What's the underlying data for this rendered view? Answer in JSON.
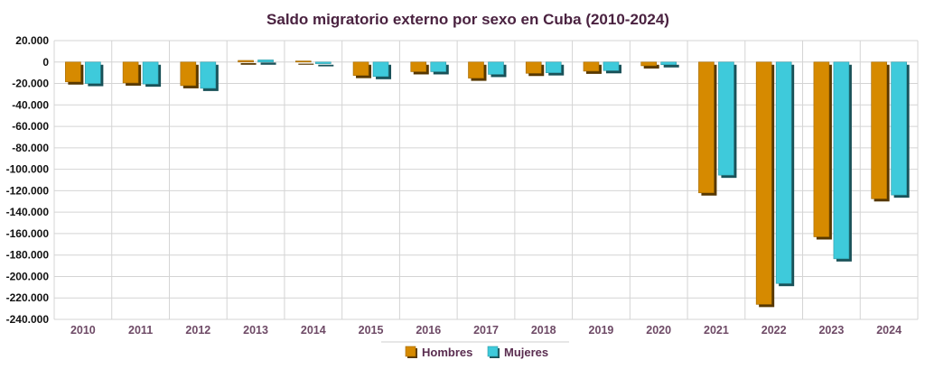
{
  "chart_data": {
    "type": "bar",
    "title": "Saldo migratorio externo por sexo en Cuba (2010-2024)",
    "xlabel": "",
    "ylabel": "",
    "categories": [
      "2010",
      "2011",
      "2012",
      "2013",
      "2014",
      "2015",
      "2016",
      "2017",
      "2018",
      "2019",
      "2020",
      "2021",
      "2022",
      "2023",
      "2024"
    ],
    "series": [
      {
        "name": "Hombres",
        "color": "#d68a00",
        "values": [
          -18500,
          -19500,
          -22000,
          1500,
          1000,
          -12500,
          -9000,
          -15000,
          -10500,
          -8500,
          -3500,
          -122000,
          -226000,
          -163000,
          -127500
        ]
      },
      {
        "name": "Mujeres",
        "color": "#3ecadb",
        "values": [
          -20000,
          -20500,
          -24500,
          2000,
          -1500,
          -13500,
          -9000,
          -11500,
          -10000,
          -8000,
          -2500,
          -105500,
          -206500,
          -183500,
          -124000
        ]
      }
    ],
    "ylim": [
      -240000,
      20000
    ],
    "yticks": [
      20000,
      0,
      -20000,
      -40000,
      -60000,
      -80000,
      -100000,
      -120000,
      -140000,
      -160000,
      -180000,
      -200000,
      -220000,
      -240000
    ],
    "ytick_labels": [
      "20.000",
      "0",
      "-20.000",
      "-40.000",
      "-60.000",
      "-80.000",
      "-100.000",
      "-120.000",
      "-140.000",
      "-160.000",
      "-180.000",
      "-200.000",
      "-220.000",
      "-240.000"
    ],
    "grid": true,
    "legend_position": "bottom-center"
  }
}
